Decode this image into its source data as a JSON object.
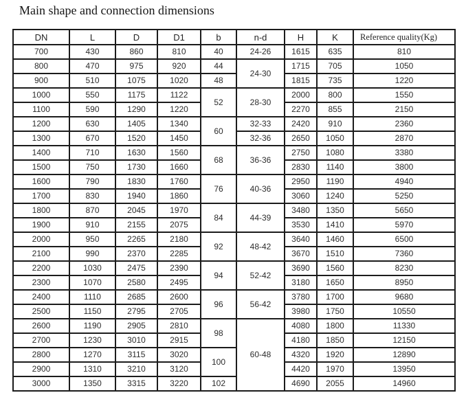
{
  "title": "Main shape and connection dimensions",
  "colors": {
    "background": "#ffffff",
    "border": "#1b1b1b",
    "text": "#2c2c2c"
  },
  "table": {
    "columns": [
      {
        "key": "dn",
        "label": "DN"
      },
      {
        "key": "l",
        "label": "L"
      },
      {
        "key": "d",
        "label": "D"
      },
      {
        "key": "d1",
        "label": "D1"
      },
      {
        "key": "b",
        "label": "b"
      },
      {
        "key": "nd",
        "label": "n-d"
      },
      {
        "key": "h",
        "label": "H"
      },
      {
        "key": "k",
        "label": "K"
      },
      {
        "key": "ref",
        "label": "Reference quality(Kg)"
      }
    ],
    "rows": [
      {
        "dn": "700",
        "l": "430",
        "d": "860",
        "d1": "810",
        "b": {
          "v": "40",
          "span": 1
        },
        "nd": {
          "v": "24-26",
          "span": 1
        },
        "h": "1615",
        "k": "635",
        "ref": "810"
      },
      {
        "dn": "800",
        "l": "470",
        "d": "975",
        "d1": "920",
        "b": {
          "v": "44",
          "span": 1
        },
        "nd": {
          "v": "24-30",
          "span": 2
        },
        "h": "1715",
        "k": "705",
        "ref": "1050"
      },
      {
        "dn": "900",
        "l": "510",
        "d": "1075",
        "d1": "1020",
        "b": {
          "v": "48",
          "span": 1
        },
        "h": "1815",
        "k": "735",
        "ref": "1220"
      },
      {
        "dn": "1000",
        "l": "550",
        "d": "1175",
        "d1": "1122",
        "b": {
          "v": "52",
          "span": 2
        },
        "nd": {
          "v": "28-30",
          "span": 2
        },
        "h": "2000",
        "k": "800",
        "ref": "1550"
      },
      {
        "dn": "1100",
        "l": "590",
        "d": "1290",
        "d1": "1220",
        "h": "2270",
        "k": "855",
        "ref": "2150"
      },
      {
        "dn": "1200",
        "l": "630",
        "d": "1405",
        "d1": "1340",
        "b": {
          "v": "60",
          "span": 2
        },
        "nd": {
          "v": "32-33",
          "span": 1
        },
        "h": "2420",
        "k": "910",
        "ref": "2360"
      },
      {
        "dn": "1300",
        "l": "670",
        "d": "1520",
        "d1": "1450",
        "nd": {
          "v": "32-36",
          "span": 1
        },
        "h": "2650",
        "k": "1050",
        "ref": "2870"
      },
      {
        "dn": "1400",
        "l": "710",
        "d": "1630",
        "d1": "1560",
        "b": {
          "v": "68",
          "span": 2
        },
        "nd": {
          "v": "36-36",
          "span": 2
        },
        "h": "2750",
        "k": "1080",
        "ref": "3380"
      },
      {
        "dn": "1500",
        "l": "750",
        "d": "1730",
        "d1": "1660",
        "h": "2830",
        "k": "1140",
        "ref": "3800"
      },
      {
        "dn": "1600",
        "l": "790",
        "d": "1830",
        "d1": "1760",
        "b": {
          "v": "76",
          "span": 2
        },
        "nd": {
          "v": "40-36",
          "span": 2
        },
        "h": "2950",
        "k": "1190",
        "ref": "4940"
      },
      {
        "dn": "1700",
        "l": "830",
        "d": "1940",
        "d1": "1860",
        "h": "3060",
        "k": "1240",
        "ref": "5250"
      },
      {
        "dn": "1800",
        "l": "870",
        "d": "2045",
        "d1": "1970",
        "b": {
          "v": "84",
          "span": 2
        },
        "nd": {
          "v": "44-39",
          "span": 2
        },
        "h": "3480",
        "k": "1350",
        "ref": "5650"
      },
      {
        "dn": "1900",
        "l": "910",
        "d": "2155",
        "d1": "2075",
        "h": "3530",
        "k": "1410",
        "ref": "5970"
      },
      {
        "dn": "2000",
        "l": "950",
        "d": "2265",
        "d1": "2180",
        "b": {
          "v": "92",
          "span": 2
        },
        "nd": {
          "v": "48-42",
          "span": 2
        },
        "h": "3640",
        "k": "1460",
        "ref": "6500"
      },
      {
        "dn": "2100",
        "l": "990",
        "d": "2370",
        "d1": "2285",
        "h": "3670",
        "k": "1510",
        "ref": "7360"
      },
      {
        "dn": "2200",
        "l": "1030",
        "d": "2475",
        "d1": "2390",
        "b": {
          "v": "94",
          "span": 2
        },
        "nd": {
          "v": "52-42",
          "span": 2
        },
        "h": "3690",
        "k": "1560",
        "ref": "8230"
      },
      {
        "dn": "2300",
        "l": "1070",
        "d": "2580",
        "d1": "2495",
        "h": "3180",
        "k": "1650",
        "ref": "8950"
      },
      {
        "dn": "2400",
        "l": "1110",
        "d": "2685",
        "d1": "2600",
        "b": {
          "v": "96",
          "span": 2
        },
        "nd": {
          "v": "56-42",
          "span": 2
        },
        "h": "3780",
        "k": "1700",
        "ref": "9680"
      },
      {
        "dn": "2500",
        "l": "1150",
        "d": "2795",
        "d1": "2705",
        "h": "3980",
        "k": "1750",
        "ref": "10550"
      },
      {
        "dn": "2600",
        "l": "1190",
        "d": "2905",
        "d1": "2810",
        "b": {
          "v": "98",
          "span": 2
        },
        "nd": {
          "v": "60-48",
          "span": 5
        },
        "h": "4080",
        "k": "1800",
        "ref": "11330"
      },
      {
        "dn": "2700",
        "l": "1230",
        "d": "3010",
        "d1": "2915",
        "h": "4180",
        "k": "1850",
        "ref": "12150"
      },
      {
        "dn": "2800",
        "l": "1270",
        "d": "3115",
        "d1": "3020",
        "b": {
          "v": "100",
          "span": 2
        },
        "h": "4320",
        "k": "1920",
        "ref": "12890"
      },
      {
        "dn": "2900",
        "l": "1310",
        "d": "3210",
        "d1": "3120",
        "h": "4420",
        "k": "1970",
        "ref": "13950"
      },
      {
        "dn": "3000",
        "l": "1350",
        "d": "3315",
        "d1": "3220",
        "b": {
          "v": "102",
          "span": 1
        },
        "h": "4690",
        "k": "2055",
        "ref": "14960"
      }
    ]
  }
}
